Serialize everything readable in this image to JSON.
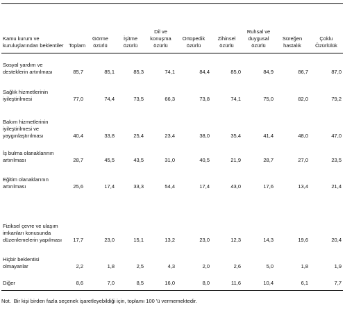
{
  "table": {
    "header": [
      "Kamu kurum ve kuruluşlarından beklentiler",
      "Toplam",
      "Görme özürlü",
      "İşitme özürlü",
      "Dil ve konuşma özürlü",
      "Ortopedik özürlü",
      "Zihinsel özürlü",
      "Ruhsal ve duygusal özürlü",
      "Süreğen hastalık",
      "Çoklu Özürlülük"
    ],
    "rows": [
      [
        "Sosyal yardım ve desteklerin artırılması",
        "85,7",
        "85,1",
        "85,3",
        "74,1",
        "84,4",
        "85,0",
        "84,9",
        "86,7",
        "87,0"
      ],
      [
        "Sağlık hizmetlerinin iyileştirilmesi",
        "77,0",
        "74,4",
        "73,5",
        "66,3",
        "73,8",
        "74,1",
        "75,0",
        "82,0",
        "79,2"
      ],
      [
        "Bakım hizmetlerinin iyileştirilmesi ve yaygınlaştırılması",
        "40,4",
        "33,8",
        "25,4",
        "23,4",
        "38,0",
        "35,4",
        "41,4",
        "48,0",
        "47,0"
      ],
      [
        "İş bulma olanaklarının artırılması",
        "28,7",
        "45,5",
        "43,5",
        "31,0",
        "40,5",
        "21,9",
        "28,7",
        "27,0",
        "23,5"
      ],
      [
        "Eğitim olanaklarının artırılması",
        "25,6",
        "17,4",
        "33,3",
        "54,4",
        "17,4",
        "43,0",
        "17,6",
        "13,4",
        "21,4"
      ],
      [
        "Fiziksel çevre ve ulaşım imkanları konusunda düzenlemelerin yapılması",
        "17,7",
        "23,0",
        "15,1",
        "13,2",
        "23,0",
        "12,3",
        "14,3",
        "19,6",
        "20,4"
      ],
      [
        "Hiçbir beklentisi olmayanlar",
        "2,2",
        "1,8",
        "2,5",
        "4,3",
        "2,0",
        "2,6",
        "5,0",
        "1,8",
        "1,9"
      ],
      [
        "Diğer",
        "8,6",
        "7,0",
        "8,5",
        "16,0",
        "8,0",
        "11,6",
        "10,4",
        "6,1",
        "7,7"
      ]
    ]
  },
  "note": {
    "label": "Not.",
    "text": "Bir kişi birden fazla seçenek işaretleyebildiği için, toplamı 100 'ü vermemektedir."
  }
}
